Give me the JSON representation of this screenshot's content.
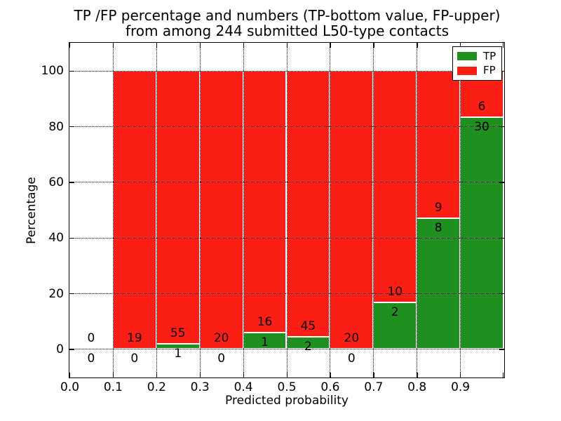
{
  "title": {
    "line1": "TP /FP percentage and numbers (TP-bottom value, FP-upper)",
    "line2": "from among 244 submitted L50-type contacts"
  },
  "x_axis": {
    "label": "Predicted probability",
    "ticks": [
      "0.0",
      "0.1",
      "0.2",
      "0.3",
      "0.4",
      "0.5",
      "0.6",
      "0.7",
      "0.8",
      "0.9"
    ],
    "range": [
      0.0,
      1.0
    ]
  },
  "y_axis": {
    "label": "Percentage",
    "ticks": [
      "0",
      "20",
      "40",
      "60",
      "80",
      "100"
    ],
    "tick_values": [
      0,
      20,
      40,
      60,
      80,
      100
    ],
    "range": [
      -10,
      110
    ]
  },
  "legend": {
    "items": [
      {
        "label": "TP",
        "color": "#1f8f1f"
      },
      {
        "label": "FP",
        "color": "#fb1e15"
      }
    ],
    "position": "upper right"
  },
  "colors": {
    "tp": "#1f8f1f",
    "fp": "#fb1e15",
    "bar_edge": "#ffffff",
    "grid": "#000000",
    "background": "#ffffff"
  },
  "chart_data": {
    "type": "bar",
    "stacked": true,
    "normalized_to_percent": true,
    "title": "TP /FP percentage and numbers (TP-bottom value, FP-upper) from among 244 submitted L50-type contacts",
    "xlabel": "Predicted probability",
    "ylabel": "Percentage",
    "xlim": [
      0.0,
      1.0
    ],
    "ylim": [
      -10,
      110
    ],
    "grid": "dotted",
    "legend_position": "upper right",
    "bin_width": 0.1,
    "total_contacts": 244,
    "categories": [
      "0.0-0.1",
      "0.1-0.2",
      "0.2-0.3",
      "0.3-0.4",
      "0.4-0.5",
      "0.5-0.6",
      "0.6-0.7",
      "0.7-0.8",
      "0.8-0.9",
      "0.9-1.0"
    ],
    "series": [
      {
        "name": "TP",
        "values": [
          0,
          0,
          1,
          0,
          1,
          2,
          0,
          2,
          8,
          30
        ]
      },
      {
        "name": "FP",
        "values": [
          0,
          19,
          55,
          20,
          16,
          45,
          20,
          10,
          9,
          6
        ]
      }
    ],
    "tp_percent": [
      null,
      0,
      1.79,
      0,
      5.88,
      4.26,
      0,
      16.67,
      47.06,
      83.33
    ]
  }
}
